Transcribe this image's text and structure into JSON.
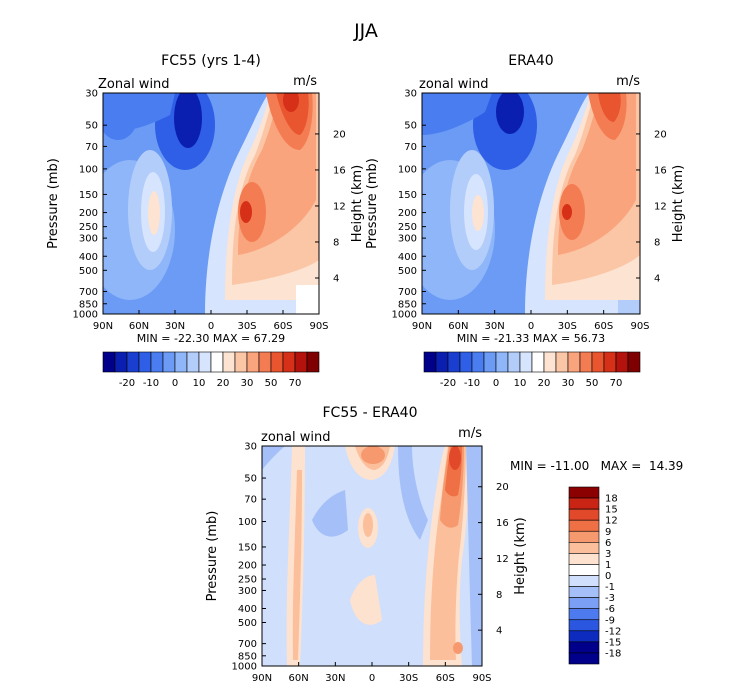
{
  "figure": {
    "title": "JJA"
  },
  "colors": {
    "full_scale": [
      "#00008b",
      "#0a1fb0",
      "#1a3fd0",
      "#2f5fe6",
      "#4a7ef0",
      "#6b9bf5",
      "#8fb6f8",
      "#b3cdfb",
      "#d6e4fd",
      "#ffffff",
      "#fde3d2",
      "#fbc6a6",
      "#f9a47c",
      "#f47c53",
      "#e9552f",
      "#d63018",
      "#b3130c",
      "#7f0000"
    ],
    "diff_scale": [
      "#00008b",
      "#0d2bbf",
      "#2a56e0",
      "#4d7aee",
      "#7a9ff4",
      "#a5c0f8",
      "#cfdffc",
      "#ffffff",
      "#fde2cf",
      "#fbbf9c",
      "#f7996e",
      "#f07045",
      "#e2492a",
      "#c92414",
      "#8b0000"
    ]
  },
  "chart_data": [
    {
      "type": "contour",
      "title": "FC55 (yrs 1-4)",
      "variable_label": "Zonal wind",
      "units": "m/s",
      "ylabel": "Pressure (mb)",
      "ylabel_right": "Height (km)",
      "x_ticks": [
        "90N",
        "60N",
        "30N",
        "0",
        "30S",
        "60S",
        "90S"
      ],
      "y_ticks": [
        "30",
        "50",
        "70",
        "100",
        "150",
        "200",
        "250",
        "300",
        "400",
        "500",
        "700",
        "850",
        "1000"
      ],
      "height_ticks": [
        "20",
        "16",
        "12",
        "8",
        "4"
      ],
      "stats": "MIN = -22.30   MAX = 67.29",
      "colorbar_labels": [
        "-20",
        "-10",
        "0",
        "10",
        "20",
        "30",
        "50",
        "70"
      ],
      "features": [
        {
          "name": "southern-hemisphere-jet",
          "lat": -40,
          "p": 200,
          "value": 40
        },
        {
          "name": "stratospheric-westerly",
          "lat": -55,
          "p": 40,
          "value": 65
        },
        {
          "name": "northern-hemisphere-jet",
          "lat": 45,
          "p": 200,
          "value": 20
        },
        {
          "name": "tropical-easterly",
          "lat": 15,
          "p": 40,
          "value": -20
        }
      ]
    },
    {
      "type": "contour",
      "title": "ERA40",
      "variable_label": "zonal wind",
      "units": "m/s",
      "ylabel": "Pressure (mb)",
      "ylabel_right": "Height (km)",
      "x_ticks": [
        "90N",
        "60N",
        "30N",
        "0",
        "30S",
        "60S",
        "90S"
      ],
      "y_ticks": [
        "30",
        "50",
        "70",
        "100",
        "150",
        "200",
        "250",
        "300",
        "400",
        "500",
        "700",
        "850",
        "1000"
      ],
      "height_ticks": [
        "20",
        "16",
        "12",
        "8",
        "4"
      ],
      "stats": "MIN = -21.33   MAX = 56.73",
      "colorbar_labels": [
        "-20",
        "-10",
        "0",
        "10",
        "20",
        "30",
        "50",
        "70"
      ],
      "features": [
        {
          "name": "southern-hemisphere-jet",
          "lat": -40,
          "p": 200,
          "value": 35
        },
        {
          "name": "stratospheric-westerly",
          "lat": -55,
          "p": 40,
          "value": 55
        },
        {
          "name": "northern-hemisphere-jet",
          "lat": 45,
          "p": 200,
          "value": 18
        },
        {
          "name": "tropical-easterly",
          "lat": 15,
          "p": 40,
          "value": -20
        }
      ]
    },
    {
      "type": "contour",
      "title": "FC55 - ERA40",
      "variable_label": "zonal wind",
      "units": "m/s",
      "ylabel": "Pressure (mb)",
      "ylabel_right": "Height (km)",
      "x_ticks": [
        "90N",
        "60N",
        "30N",
        "0",
        "30S",
        "60S",
        "90S"
      ],
      "y_ticks": [
        "30",
        "50",
        "70",
        "100",
        "150",
        "200",
        "250",
        "300",
        "400",
        "500",
        "700",
        "850",
        "1000"
      ],
      "height_ticks": [
        "20",
        "16",
        "12",
        "8",
        "4"
      ],
      "stats": "MIN = -11.00   MAX =  14.39",
      "colorbar_labels": [
        "18",
        "15",
        "12",
        "9",
        "6",
        "3",
        "1",
        "0",
        "-1",
        "-3",
        "-6",
        "-9",
        "-12",
        "-15",
        "-18"
      ],
      "features": [
        {
          "name": "positive-high-latitude",
          "lat": -58,
          "p": 40,
          "value": 14
        },
        {
          "name": "positive-tropical-upper",
          "lat": 0,
          "p": 35,
          "value": 9
        },
        {
          "name": "positive-tropical-mid",
          "lat": 0,
          "p": 100,
          "value": 5
        },
        {
          "name": "negative-band",
          "lat": -30,
          "p": 60,
          "value": -4
        }
      ]
    }
  ]
}
